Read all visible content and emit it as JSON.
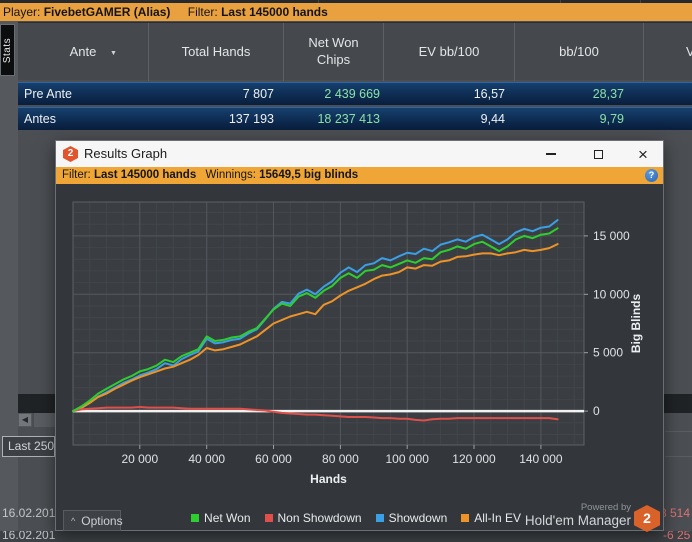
{
  "top_bar": {
    "player_label": "Player:",
    "player_name": "FivebetGAMER (Alias)",
    "filter_label": "Filter:",
    "filter_value": "Last 145000 hands"
  },
  "stats_tab_label": "Stats",
  "table": {
    "columns": [
      "Ante",
      "Total Hands",
      "Net Won Chips",
      "EV bb/100",
      "bb/100",
      "V"
    ],
    "rows": [
      {
        "label": "Pre Ante",
        "total_hands": "7 807",
        "net_won_chips": "2 439 669",
        "ev_bb100": "16,57",
        "bb100": "28,37"
      },
      {
        "label": "Antes",
        "total_hands": "137 193",
        "net_won_chips": "18 237 413",
        "ev_bb100": "9,44",
        "bb100": "9,79"
      }
    ]
  },
  "background": {
    "left_arrow": "◀",
    "last_250": "Last 250",
    "date_row_1": "16.02.201",
    "date_row_2": "16.02.201",
    "right_value_1": "8 514",
    "right_value_2": "-6 25"
  },
  "dialog": {
    "title": "Results Graph",
    "logo_text": "2",
    "close_glyph": "×",
    "filter_bar": {
      "filter_label": "Filter:",
      "filter_value": "Last 145000 hands",
      "winnings_label": "Winnings:",
      "winnings_value": "15649,5 big blinds",
      "help_glyph": "?"
    },
    "options_button": "Options",
    "options_caret": "^",
    "powered_by": "Powered by",
    "brand": "Hold'em Manager",
    "brand_logo": "2"
  },
  "chart_data": {
    "type": "line",
    "title": "",
    "xlabel": "Hands",
    "ylabel": "Big Blinds",
    "xlim": [
      0,
      152900
    ],
    "ylim": [
      -2900,
      17900
    ],
    "minor_x_step": 5000,
    "minor_y_step": 1000,
    "grid": true,
    "zero_line_color": "#f2f2f2",
    "legend_position": "bottom",
    "xticks": [
      {
        "v": 20000,
        "label": "20 000"
      },
      {
        "v": 40000,
        "label": "40 000"
      },
      {
        "v": 60000,
        "label": "60 000"
      },
      {
        "v": 80000,
        "label": "80 000"
      },
      {
        "v": 100000,
        "label": "100 000"
      },
      {
        "v": 120000,
        "label": "120 000"
      },
      {
        "v": 140000,
        "label": "140 000"
      }
    ],
    "yticks": [
      {
        "v": 0,
        "label": "0"
      },
      {
        "v": 5000,
        "label": "5 000"
      },
      {
        "v": 10000,
        "label": "10 000"
      },
      {
        "v": 15000,
        "label": "15 000"
      }
    ],
    "x": [
      0,
      2500,
      5000,
      7500,
      10000,
      12500,
      15000,
      17500,
      20000,
      22500,
      25000,
      27500,
      30000,
      32500,
      35000,
      37500,
      40000,
      42500,
      45000,
      47500,
      50000,
      52500,
      55000,
      57500,
      60000,
      62500,
      65000,
      67500,
      70000,
      72500,
      75000,
      77500,
      80000,
      82500,
      85000,
      87500,
      90000,
      92500,
      95000,
      97500,
      100000,
      102500,
      105000,
      107500,
      110000,
      112500,
      115000,
      117500,
      120000,
      122500,
      125000,
      127500,
      130000,
      132500,
      135000,
      137500,
      140000,
      142500,
      145000
    ],
    "series": [
      {
        "name": "Net Won",
        "color": "#2fce2f",
        "values": [
          0,
          400,
          900,
          1500,
          1900,
          2300,
          2700,
          3000,
          3400,
          3600,
          3900,
          4400,
          4200,
          4700,
          5000,
          5300,
          6400,
          6000,
          6100,
          6300,
          6400,
          6800,
          7100,
          7900,
          8700,
          9200,
          9000,
          9800,
          10100,
          9700,
          10300,
          10700,
          11400,
          11800,
          11400,
          12000,
          12100,
          12500,
          12300,
          12600,
          12900,
          12700,
          13100,
          13000,
          13600,
          13800,
          14100,
          13900,
          14300,
          14500,
          14100,
          13700,
          14100,
          14700,
          15000,
          14800,
          15100,
          15200,
          15650
        ]
      },
      {
        "name": "Non Showdown",
        "color": "#e0504a",
        "values": [
          0,
          150,
          200,
          250,
          300,
          300,
          300,
          300,
          350,
          300,
          300,
          300,
          300,
          250,
          200,
          200,
          200,
          200,
          200,
          200,
          200,
          150,
          100,
          50,
          -50,
          -150,
          -200,
          -250,
          -300,
          -300,
          -350,
          -400,
          -450,
          -500,
          -500,
          -500,
          -550,
          -600,
          -600,
          -650,
          -650,
          -750,
          -800,
          -700,
          -650,
          -650,
          -600,
          -600,
          -600,
          -600,
          -600,
          -600,
          -600,
          -600,
          -600,
          -600,
          -600,
          -600,
          -700
        ]
      },
      {
        "name": "Showdown",
        "color": "#3b9fe6",
        "values": [
          0,
          250,
          700,
          1250,
          1600,
          2000,
          2400,
          2700,
          3050,
          3300,
          3600,
          4100,
          3900,
          4450,
          4800,
          5100,
          6200,
          5800,
          5900,
          6100,
          6200,
          6650,
          7000,
          7850,
          8750,
          9350,
          9200,
          10050,
          10400,
          10000,
          10650,
          11100,
          11850,
          12300,
          11900,
          12500,
          12650,
          13100,
          12900,
          13250,
          13550,
          13450,
          13900,
          13700,
          14250,
          14450,
          14700,
          14500,
          14900,
          15100,
          14700,
          14300,
          14700,
          15300,
          15600,
          15400,
          15700,
          15800,
          16350
        ]
      },
      {
        "name": "All-In EV",
        "color": "#ee9328",
        "values": [
          0,
          300,
          700,
          1200,
          1500,
          1900,
          2250,
          2600,
          2900,
          3150,
          3400,
          3650,
          3800,
          4100,
          4400,
          4800,
          5400,
          5200,
          5300,
          5500,
          5700,
          6050,
          6400,
          6950,
          7500,
          7800,
          8100,
          8300,
          8500,
          8300,
          9100,
          9400,
          9900,
          10300,
          10600,
          10900,
          11300,
          11600,
          11700,
          11900,
          12300,
          12200,
          12500,
          12450,
          12800,
          12900,
          13200,
          13250,
          13400,
          13500,
          13500,
          13350,
          13500,
          13600,
          13800,
          13700,
          13800,
          13950,
          14300
        ]
      }
    ]
  }
}
